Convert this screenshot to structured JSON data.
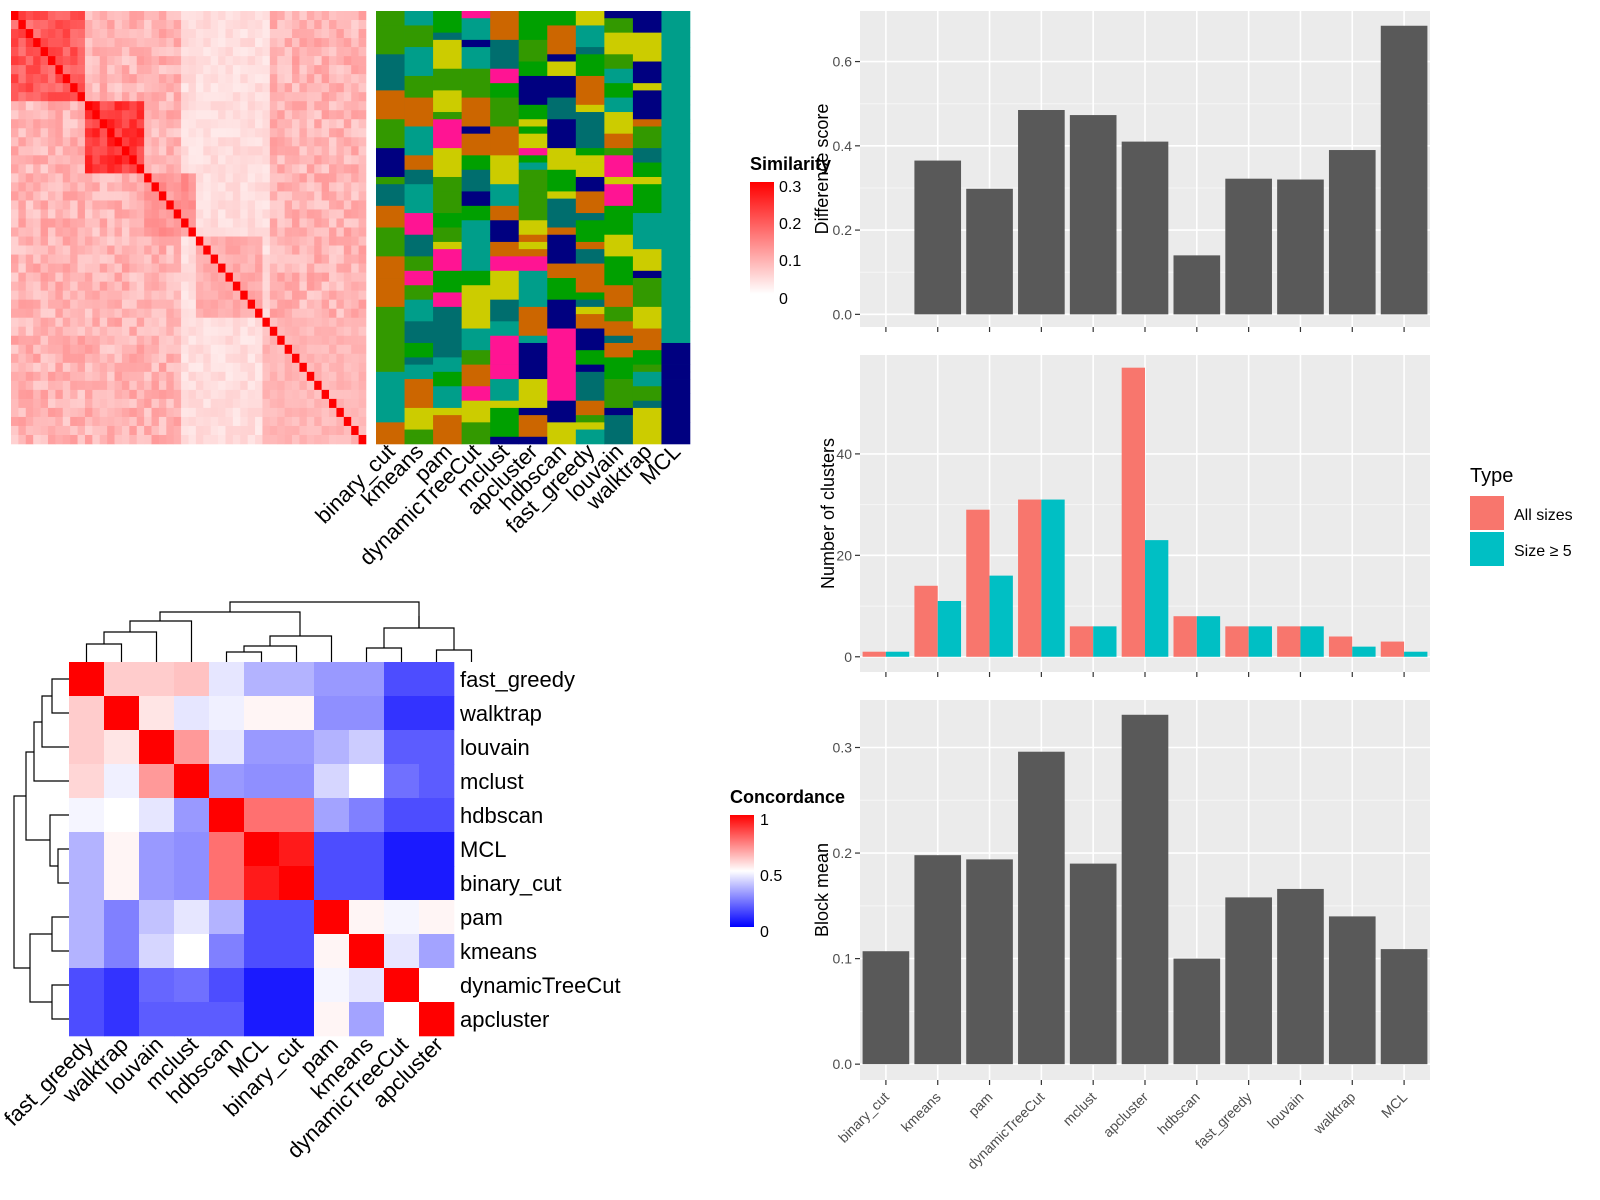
{
  "chart_data": [
    {
      "type": "heatmap",
      "name": "similarity-heatmap",
      "legend": {
        "title": "Similarity",
        "ticks": [
          "0.3",
          "0.2",
          "0.1",
          "0"
        ]
      },
      "colors": {
        "high": "#ff0000",
        "low": "#ffffff"
      }
    },
    {
      "type": "heatmap",
      "name": "cluster-membership",
      "columns": [
        "binary_cut",
        "kmeans",
        "pam",
        "dynamicTreeCut",
        "mclust",
        "apcluster",
        "hdbscan",
        "fast_greedy",
        "louvain",
        "walktrap",
        "MCL"
      ],
      "colors": [
        "#009E8A",
        "#000080",
        "#CC6600",
        "#339900",
        "#006E6E",
        "#FF1493",
        "#00A000",
        "#CCCC00"
      ]
    },
    {
      "type": "heatmap",
      "name": "concordance-heatmap",
      "rows": [
        "fast_greedy",
        "walktrap",
        "louvain",
        "mclust",
        "hdbscan",
        "MCL",
        "binary_cut",
        "pam",
        "kmeans",
        "dynamicTreeCut",
        "apcluster"
      ],
      "columns": [
        "fast_greedy",
        "walktrap",
        "louvain",
        "mclust",
        "hdbscan",
        "MCL",
        "binary_cut",
        "pam",
        "kmeans",
        "dynamicTreeCut",
        "apcluster"
      ],
      "values": [
        [
          1.0,
          0.6,
          0.6,
          0.62,
          0.45,
          0.35,
          0.35,
          0.3,
          0.3,
          0.15,
          0.15
        ],
        [
          0.6,
          1.0,
          0.55,
          0.45,
          0.47,
          0.52,
          0.52,
          0.28,
          0.28,
          0.1,
          0.1
        ],
        [
          0.6,
          0.55,
          1.0,
          0.7,
          0.45,
          0.3,
          0.3,
          0.35,
          0.4,
          0.18,
          0.18
        ],
        [
          0.58,
          0.47,
          0.7,
          1.0,
          0.3,
          0.28,
          0.28,
          0.42,
          0.5,
          0.22,
          0.18
        ],
        [
          0.48,
          0.5,
          0.45,
          0.3,
          1.0,
          0.78,
          0.78,
          0.32,
          0.25,
          0.15,
          0.15
        ],
        [
          0.35,
          0.52,
          0.3,
          0.28,
          0.78,
          1.0,
          0.95,
          0.15,
          0.15,
          0.05,
          0.05
        ],
        [
          0.35,
          0.52,
          0.3,
          0.28,
          0.78,
          0.95,
          1.0,
          0.15,
          0.15,
          0.05,
          0.05
        ],
        [
          0.35,
          0.25,
          0.38,
          0.45,
          0.35,
          0.15,
          0.15,
          1.0,
          0.52,
          0.48,
          0.52
        ],
        [
          0.35,
          0.25,
          0.42,
          0.5,
          0.25,
          0.15,
          0.15,
          0.52,
          1.0,
          0.45,
          0.32
        ],
        [
          0.15,
          0.1,
          0.2,
          0.22,
          0.15,
          0.05,
          0.05,
          0.48,
          0.45,
          1.0,
          0.5
        ],
        [
          0.15,
          0.1,
          0.18,
          0.18,
          0.18,
          0.05,
          0.05,
          0.52,
          0.32,
          0.5,
          1.0
        ]
      ],
      "legend": {
        "title": "Concordance",
        "ticks": [
          "1",
          "0.5",
          "0"
        ]
      },
      "colors": {
        "high": "#ff0000",
        "mid": "#ffffff",
        "low": "#0000ff"
      }
    },
    {
      "type": "bar",
      "name": "difference-score",
      "categories": [
        "binary_cut",
        "kmeans",
        "pam",
        "dynamicTreeCut",
        "mclust",
        "apcluster",
        "hdbscan",
        "fast_greedy",
        "louvain",
        "walktrap",
        "MCL"
      ],
      "values": [
        0.0,
        0.365,
        0.298,
        0.485,
        0.473,
        0.41,
        0.14,
        0.322,
        0.32,
        0.39,
        0.685
      ],
      "ylabel": "Difference score",
      "ylim": [
        -0.03,
        0.72
      ],
      "yticks": [
        "0.0",
        "0.2",
        "0.4",
        "0.6"
      ],
      "grid": true
    },
    {
      "type": "bar",
      "name": "number-of-clusters",
      "categories": [
        "binary_cut",
        "kmeans",
        "pam",
        "dynamicTreeCut",
        "mclust",
        "apcluster",
        "hdbscan",
        "fast_greedy",
        "louvain",
        "walktrap",
        "MCL"
      ],
      "series": [
        {
          "name": "All sizes",
          "color": "#F8766D",
          "values": [
            1,
            14,
            29,
            31,
            6,
            57,
            8,
            6,
            6,
            4,
            3
          ]
        },
        {
          "name": "Size ≥ 5",
          "color": "#00BFC4",
          "values": [
            1,
            11,
            16,
            31,
            6,
            23,
            8,
            6,
            6,
            2,
            1
          ]
        }
      ],
      "ylabel": "Number of clusters",
      "ylim": [
        -3,
        59.5
      ],
      "yticks": [
        "0",
        "20",
        "40"
      ],
      "legend": {
        "title": "Type",
        "position": "right"
      },
      "grid": true
    },
    {
      "type": "bar",
      "name": "block-mean",
      "categories": [
        "binary_cut",
        "kmeans",
        "pam",
        "dynamicTreeCut",
        "mclust",
        "apcluster",
        "hdbscan",
        "fast_greedy",
        "louvain",
        "walktrap",
        "MCL"
      ],
      "values": [
        0.107,
        0.198,
        0.194,
        0.296,
        0.19,
        0.331,
        0.1,
        0.158,
        0.166,
        0.14,
        0.109
      ],
      "ylabel": "Block mean",
      "ylim": [
        -0.015,
        0.345
      ],
      "yticks": [
        "0.0",
        "0.1",
        "0.2",
        "0.3"
      ],
      "grid": true
    }
  ]
}
